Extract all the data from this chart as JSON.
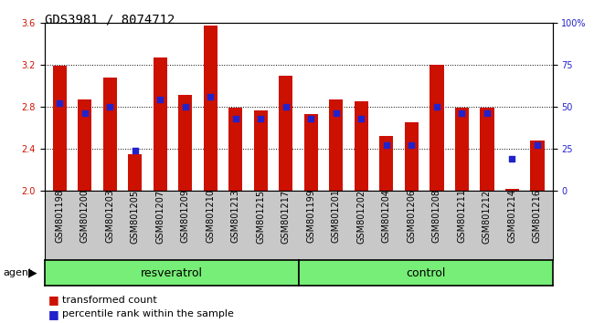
{
  "title": "GDS3981 / 8074712",
  "categories": [
    "GSM801198",
    "GSM801200",
    "GSM801203",
    "GSM801205",
    "GSM801207",
    "GSM801209",
    "GSM801210",
    "GSM801213",
    "GSM801215",
    "GSM801217",
    "GSM801199",
    "GSM801201",
    "GSM801202",
    "GSM801204",
    "GSM801206",
    "GSM801208",
    "GSM801211",
    "GSM801212",
    "GSM801214",
    "GSM801216"
  ],
  "red_values": [
    3.19,
    2.87,
    3.08,
    2.35,
    3.27,
    2.91,
    3.57,
    2.79,
    2.76,
    3.09,
    2.73,
    2.87,
    2.85,
    2.52,
    2.65,
    3.2,
    2.79,
    2.79,
    2.02,
    2.48
  ],
  "blue_values_pct": [
    52,
    46,
    50,
    24,
    54,
    50,
    56,
    43,
    43,
    50,
    43,
    46,
    43,
    27,
    27,
    50,
    46,
    46,
    19,
    27
  ],
  "ylim_left": [
    2.0,
    3.6
  ],
  "ylim_right": [
    0,
    100
  ],
  "yticks_left": [
    2.0,
    2.4,
    2.8,
    3.2,
    3.6
  ],
  "yticks_right": [
    0,
    25,
    50,
    75,
    100
  ],
  "ytick_labels_right": [
    "0",
    "25",
    "50",
    "75",
    "100%"
  ],
  "bar_color": "#cc1100",
  "dot_color": "#2222cc",
  "bar_bottom": 2.0,
  "resveratrol_count": 10,
  "control_count": 10,
  "agent_label": "agent",
  "group1_label": "resveratrol",
  "group2_label": "control",
  "legend1": "transformed count",
  "legend2": "percentile rank within the sample",
  "background_color": "#c8c8c8",
  "plot_bg_color": "#ffffff",
  "group_bg_color": "#77ee77",
  "title_fontsize": 10,
  "tick_fontsize": 7
}
